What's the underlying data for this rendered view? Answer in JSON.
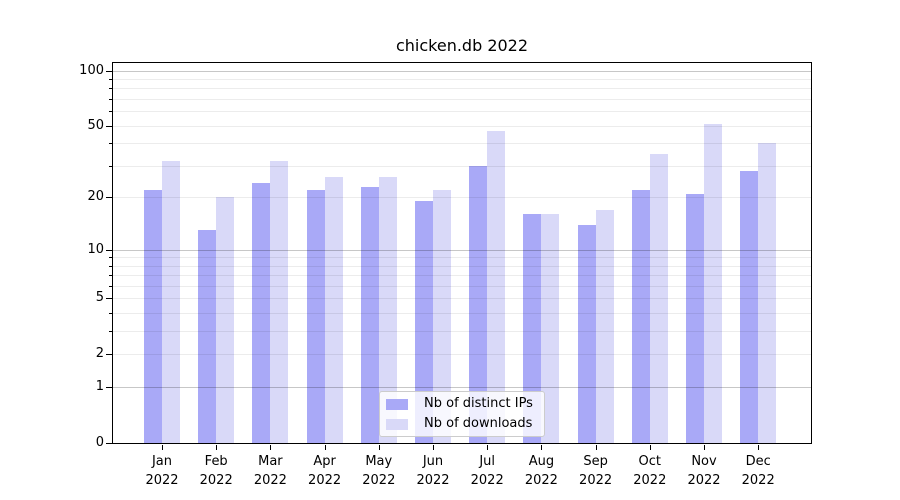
{
  "title": "chicken.db 2022",
  "chart_data": {
    "type": "bar",
    "title": "chicken.db 2022",
    "categories": [
      "Jan",
      "Feb",
      "Mar",
      "Apr",
      "May",
      "Jun",
      "Jul",
      "Aug",
      "Sep",
      "Oct",
      "Nov",
      "Dec"
    ],
    "category_year": "2022",
    "series": [
      {
        "name": "Nb of distinct IPs",
        "color": "#a9a9f7",
        "values": [
          22,
          13,
          24,
          22,
          23,
          19,
          30,
          16,
          14,
          22,
          21,
          28
        ]
      },
      {
        "name": "Nb of downloads",
        "color": "#d9d9f8",
        "values": [
          32,
          20,
          32,
          26,
          26,
          22,
          47,
          16,
          17,
          35,
          51,
          40
        ]
      }
    ],
    "xlabel": "",
    "ylabel": "",
    "yscale": "log1p",
    "ylim": [
      0,
      112
    ],
    "ytick_labels": [
      "100",
      "50",
      "20",
      "10",
      "5",
      "2",
      "1",
      "0"
    ],
    "ytick_values": [
      100,
      50,
      20,
      10,
      5,
      2,
      1,
      0
    ],
    "major_grid_values": [
      1,
      10,
      100
    ],
    "minor_grid_values": [
      2,
      3,
      4,
      5,
      6,
      7,
      8,
      9,
      20,
      30,
      40,
      50,
      60,
      70,
      80,
      90
    ],
    "minor_tick_values": [
      3,
      4,
      6,
      7,
      8,
      9,
      30,
      40,
      60,
      70,
      80,
      90
    ],
    "grid": "both",
    "legend_position": "lower center"
  },
  "colors": {
    "bar_distinct_ips": "#a9a9f7",
    "bar_downloads": "#d9d9f8",
    "major_grid": "#c6c6c6",
    "minor_grid": "#ececec",
    "spine": "#000000",
    "legend_border": "#cccccc",
    "legend_background": "rgba(255,255,255,0.8)",
    "text": "#000000"
  }
}
